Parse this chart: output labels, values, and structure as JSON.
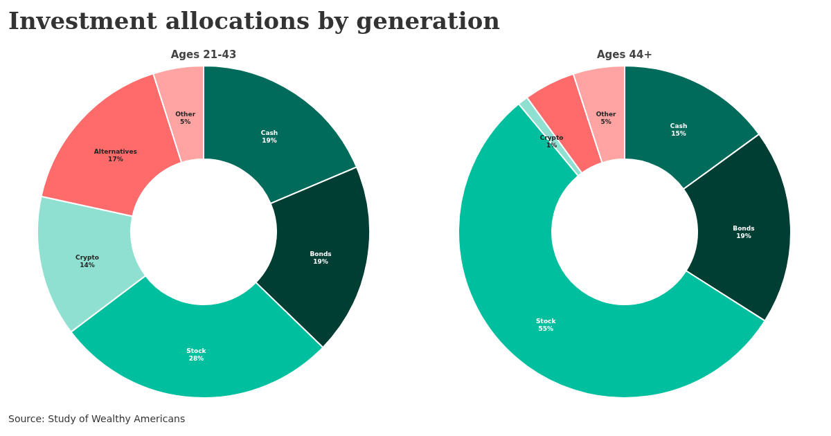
{
  "chart_data": [
    {
      "type": "donut",
      "title": "Investment allocations by generation",
      "subtitle": "Ages 21-43",
      "categories": [
        "Cash",
        "Bonds",
        "Stock",
        "Crypto",
        "Alternatives",
        "Other"
      ],
      "values": [
        19,
        19,
        28,
        14,
        17,
        5
      ],
      "value_labels": [
        "19%",
        "19%",
        "28%",
        "14%",
        "17%",
        "5%"
      ],
      "colors": [
        "#006b5a",
        "#003d32",
        "#00bf9f",
        "#8fe0d1",
        "#ff6b6b",
        "#ffa3a3"
      ],
      "legend": false
    },
    {
      "type": "donut",
      "subtitle": "Ages 44+",
      "categories": [
        "Cash",
        "Bonds",
        "Stock",
        "Crypto",
        null,
        "Other"
      ],
      "values": [
        15,
        19,
        55,
        1,
        5,
        5
      ],
      "value_labels": [
        "15%",
        "19%",
        "55%",
        "1%",
        null,
        "5%"
      ],
      "colors": [
        "#006b5a",
        "#003d32",
        "#00bf9f",
        "#8fe0d1",
        "#ff6b6b",
        "#ffa3a3"
      ],
      "legend": false,
      "annotations": [
        "Source: Study of Wealthy Americans"
      ]
    }
  ]
}
